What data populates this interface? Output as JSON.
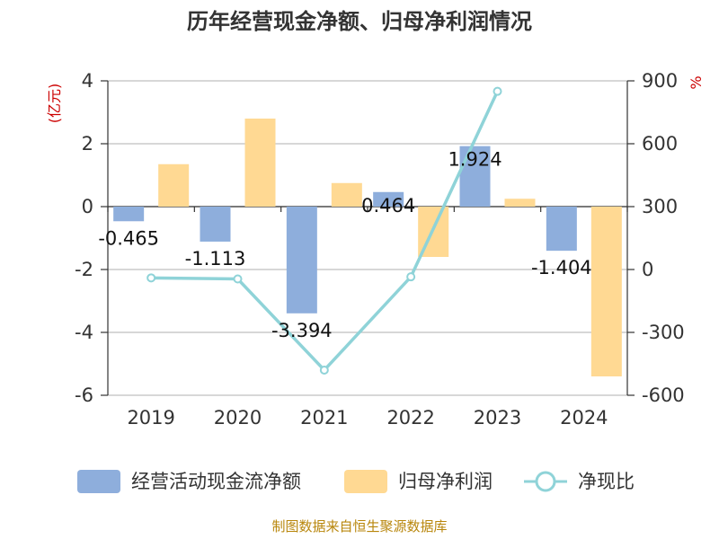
{
  "chart_data": {
    "type": "bar",
    "title": "历年经营现金净额、归母净利润情况",
    "categories": [
      "2019",
      "2020",
      "2021",
      "2022",
      "2023",
      "2024"
    ],
    "y_left": {
      "unit": "(亿元)",
      "ylim": [
        -6,
        4
      ],
      "ticks": [
        4,
        2,
        0,
        -2,
        -4,
        -6
      ]
    },
    "y_right": {
      "unit": "%",
      "ylim": [
        -600,
        900
      ],
      "ticks": [
        900,
        600,
        300,
        0,
        -300,
        -600
      ]
    },
    "series": [
      {
        "name": "经营活动现金流净额",
        "type": "bar",
        "axis": "left",
        "color": "#8eaedc",
        "values": [
          -0.465,
          -1.113,
          -3.394,
          0.464,
          1.924,
          -1.404
        ],
        "labels": [
          "-0.465",
          "-1.113",
          "-3.394",
          "0.464",
          "1.924",
          "-1.404"
        ]
      },
      {
        "name": "归母净利润",
        "type": "bar",
        "axis": "left",
        "color": "#ffd993",
        "values": [
          1.35,
          2.8,
          0.75,
          -1.6,
          0.25,
          -5.4
        ]
      },
      {
        "name": "净现比",
        "type": "line",
        "axis": "right",
        "color": "#8fd3d8",
        "values": [
          -40,
          -45,
          -480,
          -35,
          850,
          null
        ]
      }
    ],
    "grid": true,
    "legend_position": "bottom"
  },
  "source_text": "制图数据来自恒生聚源数据库"
}
